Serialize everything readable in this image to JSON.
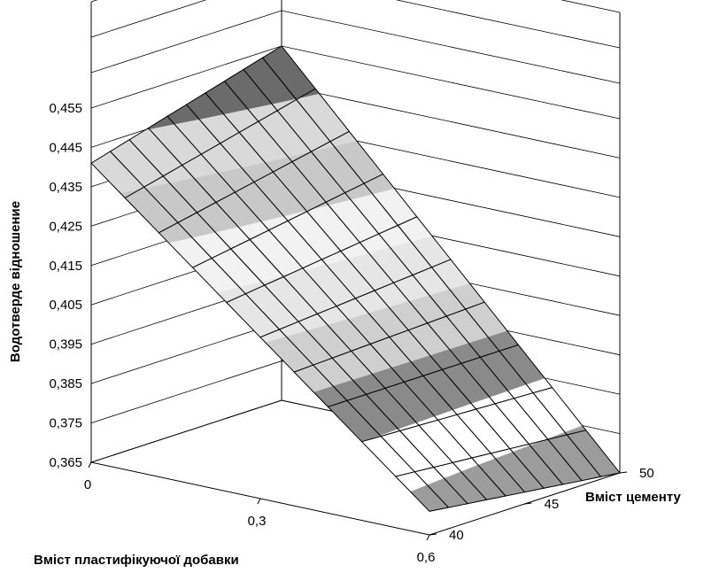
{
  "chart_data": {
    "type": "surface",
    "zlabel": "Водотверде відношение",
    "xlabel": "Вміст пластифікуючої добавки",
    "ylabel": "Вміст цементу",
    "z_ticks": [
      "0,365",
      "0,375",
      "0,385",
      "0,395",
      "0,405",
      "0,415",
      "0,425",
      "0,435",
      "0,445",
      "0,455"
    ],
    "x_ticks": [
      "0",
      "0,3",
      "0,6"
    ],
    "y_ticks": [
      "40",
      "45",
      "50"
    ],
    "zlim": [
      0.365,
      0.455
    ],
    "xlim": [
      0,
      0.6
    ],
    "ylim": [
      40,
      50
    ],
    "band_edges": [
      0.365,
      0.375,
      0.385,
      0.395,
      0.405,
      0.415,
      0.425,
      0.435,
      0.445,
      0.455
    ],
    "band_colors": [
      "#9c9c9c",
      "#ffffff",
      "#8a8a8a",
      "#cfcfcf",
      "#e6e6e6",
      "#f2f2f2",
      "#c8c8c8",
      "#d9d9d9",
      "#6b6b6b"
    ],
    "surface": {
      "x": [
        0,
        0.06,
        0.12,
        0.18,
        0.24,
        0.3,
        0.36,
        0.42,
        0.48,
        0.54,
        0.6
      ],
      "y": [
        40,
        41,
        42,
        43,
        44,
        45,
        46,
        47,
        48,
        49,
        50
      ],
      "z_at_corners": {
        "x0_y40": 0.441,
        "x0_y50": 0.455,
        "x06_y40": 0.371,
        "x06_y50": 0.365
      },
      "z_center": 0.408
    }
  }
}
